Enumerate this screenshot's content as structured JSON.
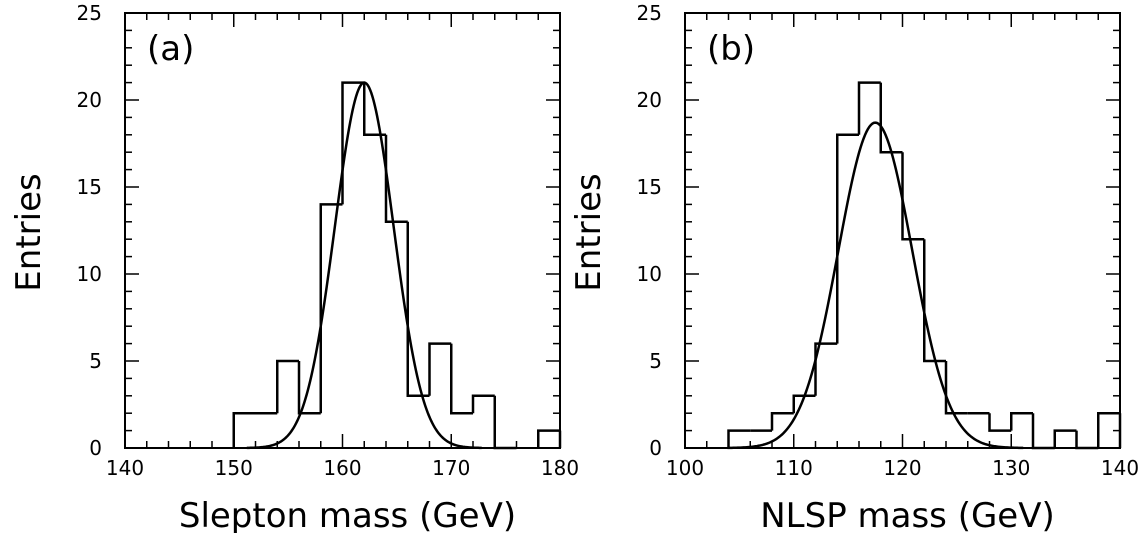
{
  "chart_data": [
    {
      "type": "histogram",
      "panel_label": "(a)",
      "xlabel": "Slepton mass (GeV)",
      "ylabel": "Entries",
      "xlim": [
        140,
        180
      ],
      "ylim": [
        0,
        25
      ],
      "x_ticks": [
        "140",
        "150",
        "160",
        "170",
        "180"
      ],
      "y_ticks": [
        "0",
        "5",
        "10",
        "15",
        "20",
        "25"
      ],
      "bin_width": 2,
      "bin_edges": [
        140,
        142,
        144,
        146,
        148,
        150,
        152,
        154,
        156,
        158,
        160,
        162,
        164,
        166,
        168,
        170,
        172,
        174,
        176,
        178,
        180
      ],
      "counts": [
        0,
        0,
        0,
        0,
        0,
        2,
        2,
        5,
        2,
        14,
        21,
        18,
        13,
        3,
        6,
        2,
        3,
        0,
        0,
        1
      ],
      "fit": {
        "type": "gaussian",
        "mean": 162.0,
        "sigma": 2.7,
        "amplitude": 21
      }
    },
    {
      "type": "histogram",
      "panel_label": "(b)",
      "xlabel": "NLSP mass (GeV)",
      "ylabel": "Entries",
      "xlim": [
        100,
        140
      ],
      "ylim": [
        0,
        25
      ],
      "x_ticks": [
        "100",
        "110",
        "120",
        "130",
        "140"
      ],
      "y_ticks": [
        "0",
        "5",
        "10",
        "15",
        "20",
        "25"
      ],
      "bin_width": 2,
      "bin_edges": [
        100,
        102,
        104,
        106,
        108,
        110,
        112,
        114,
        116,
        118,
        120,
        122,
        124,
        126,
        128,
        130,
        132,
        134,
        136,
        138,
        140
      ],
      "counts": [
        0,
        0,
        1,
        1,
        2,
        3,
        6,
        18,
        21,
        17,
        12,
        5,
        2,
        2,
        1,
        2,
        0,
        1,
        0,
        2
      ],
      "fit": {
        "type": "gaussian",
        "mean": 117.5,
        "sigma": 3.4,
        "amplitude": 18.7
      }
    }
  ]
}
